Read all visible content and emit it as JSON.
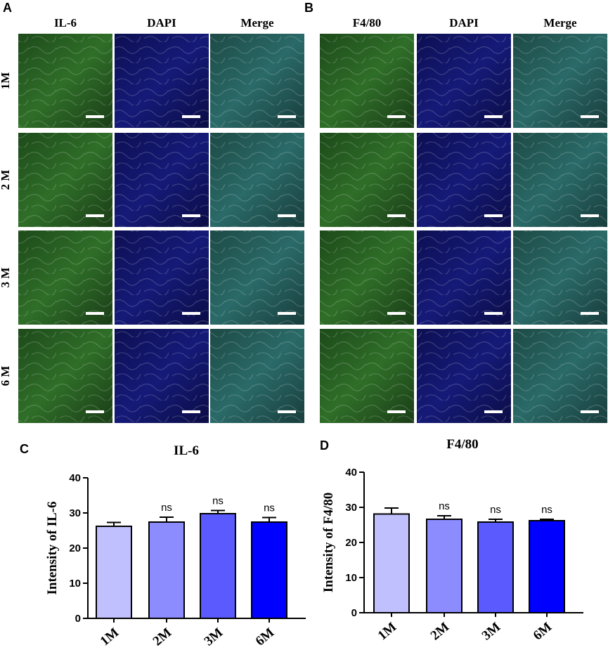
{
  "panels": [
    {
      "label": "A",
      "columns": [
        "IL-6",
        "DAPI",
        "Merge"
      ],
      "rows": [
        "1M",
        "2 M",
        "3 M",
        "6 M"
      ]
    },
    {
      "label": "B",
      "columns": [
        "F4/80",
        "DAPI",
        "Merge"
      ]
    }
  ],
  "chart_data": [
    {
      "type": "bar",
      "panel_label": "C",
      "title": "IL-6",
      "y_label": "Intensity of IL-6",
      "categories": [
        "1M",
        "2M",
        "3M",
        "6M"
      ],
      "values": [
        26.2,
        27.4,
        29.8,
        27.4
      ],
      "errors": [
        1.1,
        1.4,
        0.9,
        1.3
      ],
      "annotations": [
        null,
        "ns",
        "ns",
        "ns"
      ],
      "colors": [
        "#c0c0ff",
        "#8c8cff",
        "#5a5aff",
        "#0000ff"
      ],
      "ylim": [
        0,
        40
      ],
      "yticks": [
        0,
        10,
        20,
        30,
        40
      ]
    },
    {
      "type": "bar",
      "panel_label": "D",
      "title": "F4/80",
      "y_label": "Intensity of F4/80",
      "categories": [
        "1M",
        "2M",
        "3M",
        "6M"
      ],
      "values": [
        28.1,
        26.6,
        25.8,
        26.2
      ],
      "errors": [
        1.7,
        1.0,
        0.8,
        0.4
      ],
      "annotations": [
        null,
        "ns",
        "ns",
        "ns"
      ],
      "colors": [
        "#c0c0ff",
        "#8c8cff",
        "#5a5aff",
        "#0000ff"
      ],
      "ylim": [
        0,
        40
      ],
      "yticks": [
        0,
        10,
        20,
        30,
        40
      ]
    }
  ]
}
